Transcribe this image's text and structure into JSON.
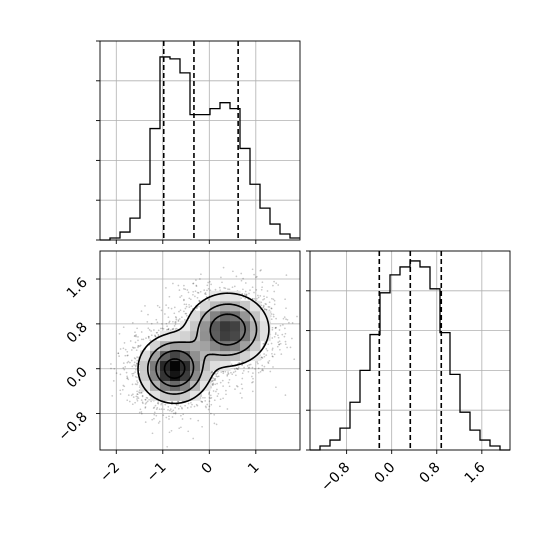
{
  "chart_data": {
    "type": "corner",
    "grid": true,
    "panels": [
      {
        "id": "hist-x",
        "type": "histogram",
        "xlim": [
          -2.35,
          1.95
        ],
        "ylim": [
          0,
          1.0
        ],
        "x_ticks": [
          -2,
          -1,
          0,
          1
        ],
        "x_tick_labels": [
          "-2",
          "-1",
          "0",
          "1"
        ],
        "y_ticks": [
          0.0,
          0.2,
          0.4,
          0.6,
          0.8,
          1.0
        ],
        "tick_labels_shown": false,
        "bin_edges": [
          -2.35,
          -2.135,
          -1.92,
          -1.705,
          -1.49,
          -1.275,
          -1.06,
          -0.845,
          -0.63,
          -0.415,
          -0.2,
          0.015,
          0.23,
          0.445,
          0.66,
          0.875,
          1.09,
          1.305,
          1.52,
          1.735,
          1.95
        ],
        "counts": [
          0.0,
          0.01,
          0.04,
          0.11,
          0.28,
          0.56,
          0.92,
          0.91,
          0.84,
          0.63,
          0.63,
          0.66,
          0.69,
          0.66,
          0.46,
          0.28,
          0.16,
          0.08,
          0.03,
          0.01
        ],
        "quantile_lines": [
          -0.98,
          -0.33,
          0.62
        ]
      },
      {
        "id": "scatter-2d",
        "type": "scatter_density",
        "xlim": [
          -2.35,
          1.95
        ],
        "ylim": [
          -1.45,
          2.1
        ],
        "x_ticks": [
          -2,
          -1,
          0,
          1
        ],
        "x_tick_labels": [
          "−2",
          "−1",
          "0",
          "1"
        ],
        "y_ticks": [
          -0.8,
          0.0,
          0.8,
          1.6
        ],
        "y_tick_labels": [
          "−0.8",
          "0.0",
          "0.8",
          "1.6"
        ],
        "modes": [
          {
            "x": -0.75,
            "y": 0.0,
            "sx": 0.38,
            "sy": 0.3,
            "weight": 0.55
          },
          {
            "x": 0.4,
            "y": 0.7,
            "sx": 0.45,
            "sy": 0.33,
            "weight": 0.45
          }
        ],
        "contour_levels": [
          0.12,
          0.32,
          0.58,
          0.85
        ]
      },
      {
        "id": "hist-y",
        "type": "histogram",
        "xlim": [
          -1.45,
          2.1
        ],
        "ylim": [
          0,
          1.0
        ],
        "x_ticks": [
          -0.8,
          0.0,
          0.8,
          1.6
        ],
        "x_tick_labels": [
          "−0.8",
          "0.0",
          "0.8",
          "1.6"
        ],
        "y_ticks": [
          0.0,
          0.2,
          0.4,
          0.6,
          0.8,
          1.0
        ],
        "tick_labels_shown": false,
        "bin_edges": [
          -1.45,
          -1.2725,
          -1.095,
          -0.9175,
          -0.74,
          -0.5625,
          -0.385,
          -0.2075,
          -0.03,
          0.1475,
          0.325,
          0.5025,
          0.68,
          0.8575,
          1.035,
          1.2125,
          1.39,
          1.5675,
          1.745,
          1.9225,
          2.1
        ],
        "counts": [
          0.0,
          0.02,
          0.05,
          0.11,
          0.24,
          0.4,
          0.58,
          0.79,
          0.88,
          0.92,
          0.95,
          0.92,
          0.81,
          0.59,
          0.38,
          0.19,
          0.1,
          0.05,
          0.02,
          0.0
        ],
        "quantile_lines": [
          -0.22,
          0.33,
          0.88
        ]
      }
    ]
  }
}
